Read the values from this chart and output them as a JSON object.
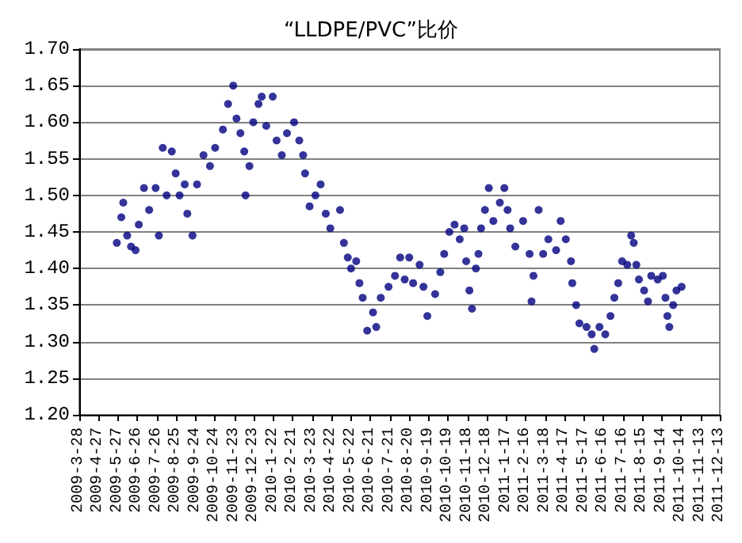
{
  "chart_data": {
    "type": "scatter",
    "title": "“LLDPE/PVC”比价",
    "x": [
      "2009-05-25",
      "2009-06-01",
      "2009-06-04",
      "2009-06-10",
      "2009-06-16",
      "2009-06-23",
      "2009-06-28",
      "2009-07-06",
      "2009-07-14",
      "2009-07-24",
      "2009-07-29",
      "2009-08-04",
      "2009-08-10",
      "2009-08-18",
      "2009-08-24",
      "2009-08-30",
      "2009-09-07",
      "2009-09-11",
      "2009-09-19",
      "2009-09-26",
      "2009-10-06",
      "2009-10-16",
      "2009-10-24",
      "2009-11-05",
      "2009-11-13",
      "2009-11-21",
      "2009-11-26",
      "2009-12-02",
      "2009-12-08",
      "2009-12-10",
      "2009-12-16",
      "2009-12-22",
      "2009-12-30",
      "2010-01-04",
      "2010-01-11",
      "2010-01-21",
      "2010-01-27",
      "2010-02-04",
      "2010-02-12",
      "2010-02-23",
      "2010-03-03",
      "2010-03-09",
      "2010-03-12",
      "2010-03-19",
      "2010-03-28",
      "2010-04-05",
      "2010-04-13",
      "2010-04-20",
      "2010-05-05",
      "2010-05-11",
      "2010-05-17",
      "2010-05-22",
      "2010-05-30",
      "2010-06-04",
      "2010-06-09",
      "2010-06-16",
      "2010-06-25",
      "2010-06-30",
      "2010-07-07",
      "2010-07-19",
      "2010-07-29",
      "2010-08-06",
      "2010-08-13",
      "2010-08-20",
      "2010-08-26",
      "2010-09-05",
      "2010-09-11",
      "2010-09-17",
      "2010-09-29",
      "2010-10-07",
      "2010-10-13",
      "2010-10-21",
      "2010-10-29",
      "2010-11-06",
      "2010-11-13",
      "2010-11-16",
      "2010-11-21",
      "2010-11-25",
      "2010-12-01",
      "2010-12-05",
      "2010-12-09",
      "2010-12-15",
      "2010-12-21",
      "2010-12-28",
      "2011-01-07",
      "2011-01-14",
      "2011-01-19",
      "2011-01-23",
      "2011-01-31",
      "2011-02-12",
      "2011-02-22",
      "2011-02-25",
      "2011-02-28",
      "2011-03-08",
      "2011-03-15",
      "2011-03-23",
      "2011-04-04",
      "2011-04-11",
      "2011-04-19",
      "2011-04-27",
      "2011-04-29",
      "2011-05-05",
      "2011-05-10",
      "2011-05-21",
      "2011-05-29",
      "2011-06-02",
      "2011-06-10",
      "2011-06-19",
      "2011-06-27",
      "2011-07-03",
      "2011-07-09",
      "2011-07-15",
      "2011-07-23",
      "2011-07-29",
      "2011-08-02",
      "2011-08-06",
      "2011-08-10",
      "2011-08-18",
      "2011-08-24",
      "2011-08-29",
      "2011-09-08",
      "2011-09-16",
      "2011-09-20",
      "2011-09-23",
      "2011-09-26",
      "2011-10-02",
      "2011-10-07",
      "2011-10-15"
    ],
    "series": [
      {
        "color": "#000080",
        "values": [
          1.435,
          1.47,
          1.49,
          1.445,
          1.43,
          1.425,
          1.46,
          1.51,
          1.48,
          1.51,
          1.445,
          1.565,
          1.5,
          1.56,
          1.53,
          1.5,
          1.515,
          1.475,
          1.445,
          1.515,
          1.555,
          1.54,
          1.565,
          1.59,
          1.625,
          1.65,
          1.605,
          1.585,
          1.56,
          1.5,
          1.54,
          1.6,
          1.625,
          1.635,
          1.595,
          1.635,
          1.575,
          1.555,
          1.585,
          1.6,
          1.575,
          1.555,
          1.53,
          1.485,
          1.5,
          1.515,
          1.475,
          1.455,
          1.48,
          1.435,
          1.415,
          1.4,
          1.41,
          1.38,
          1.36,
          1.315,
          1.34,
          1.32,
          1.36,
          1.375,
          1.39,
          1.415,
          1.385,
          1.415,
          1.38,
          1.405,
          1.375,
          1.335,
          1.365,
          1.395,
          1.42,
          1.45,
          1.46,
          1.44,
          1.455,
          1.41,
          1.37,
          1.345,
          1.4,
          1.42,
          1.455,
          1.48,
          1.51,
          1.465,
          1.49,
          1.51,
          1.48,
          1.455,
          1.43,
          1.465,
          1.42,
          1.355,
          1.39,
          1.48,
          1.42,
          1.44,
          1.425,
          1.465,
          1.44,
          1.41,
          1.38,
          1.35,
          1.325,
          1.32,
          1.31,
          1.29,
          1.32,
          1.31,
          1.335,
          1.36,
          1.38,
          1.41,
          1.405,
          1.445,
          1.435,
          1.405,
          1.385,
          1.37,
          1.355,
          1.39,
          1.385,
          1.39,
          1.36,
          1.335,
          1.32,
          1.35,
          1.37,
          1.375
        ]
      }
    ],
    "xlim": [
      "2009-03-28",
      "2011-12-13"
    ],
    "xticks": [
      {
        "value": "2009-03-28",
        "label": "2009-3-28"
      },
      {
        "value": "2009-04-27",
        "label": "2009-4-27"
      },
      {
        "value": "2009-05-27",
        "label": "2009-5-27"
      },
      {
        "value": "2009-06-26",
        "label": "2009-6-26"
      },
      {
        "value": "2009-07-26",
        "label": "2009-7-26"
      },
      {
        "value": "2009-08-25",
        "label": "2009-8-25"
      },
      {
        "value": "2009-09-24",
        "label": "2009-9-24"
      },
      {
        "value": "2009-10-24",
        "label": "2009-10-24"
      },
      {
        "value": "2009-11-23",
        "label": "2009-11-23"
      },
      {
        "value": "2009-12-23",
        "label": "2009-12-23"
      },
      {
        "value": "2010-01-22",
        "label": "2010-1-22"
      },
      {
        "value": "2010-02-21",
        "label": "2010-2-21"
      },
      {
        "value": "2010-03-23",
        "label": "2010-3-23"
      },
      {
        "value": "2010-04-22",
        "label": "2010-4-22"
      },
      {
        "value": "2010-05-22",
        "label": "2010-5-22"
      },
      {
        "value": "2010-06-21",
        "label": "2010-6-21"
      },
      {
        "value": "2010-07-21",
        "label": "2010-7-21"
      },
      {
        "value": "2010-08-20",
        "label": "2010-8-20"
      },
      {
        "value": "2010-09-19",
        "label": "2010-9-19"
      },
      {
        "value": "2010-10-19",
        "label": "2010-10-19"
      },
      {
        "value": "2010-11-18",
        "label": "2010-11-18"
      },
      {
        "value": "2010-12-18",
        "label": "2010-12-18"
      },
      {
        "value": "2011-01-17",
        "label": "2011-1-17"
      },
      {
        "value": "2011-02-16",
        "label": "2011-2-16"
      },
      {
        "value": "2011-03-18",
        "label": "2011-3-18"
      },
      {
        "value": "2011-04-17",
        "label": "2011-4-17"
      },
      {
        "value": "2011-05-17",
        "label": "2011-5-17"
      },
      {
        "value": "2011-06-16",
        "label": "2011-6-16"
      },
      {
        "value": "2011-07-16",
        "label": "2011-7-16"
      },
      {
        "value": "2011-08-15",
        "label": "2011-8-15"
      },
      {
        "value": "2011-09-14",
        "label": "2011-9-14"
      },
      {
        "value": "2011-10-14",
        "label": "2011-10-14"
      },
      {
        "value": "2011-11-13",
        "label": "2011-11-13"
      },
      {
        "value": "2011-12-13",
        "label": "2011-12-13"
      }
    ],
    "ylim": [
      1.2,
      1.7
    ],
    "yticks": [
      {
        "value": 1.2,
        "label": "1.20"
      },
      {
        "value": 1.25,
        "label": "1.25"
      },
      {
        "value": 1.3,
        "label": "1.30"
      },
      {
        "value": 1.35,
        "label": "1.35"
      },
      {
        "value": 1.4,
        "label": "1.40"
      },
      {
        "value": 1.45,
        "label": "1.45"
      },
      {
        "value": 1.5,
        "label": "1.50"
      },
      {
        "value": 1.55,
        "label": "1.55"
      },
      {
        "value": 1.6,
        "label": "1.60"
      },
      {
        "value": 1.65,
        "label": "1.65"
      },
      {
        "value": 1.7,
        "label": "1.70"
      }
    ],
    "grid": "y",
    "marker": "circle"
  }
}
